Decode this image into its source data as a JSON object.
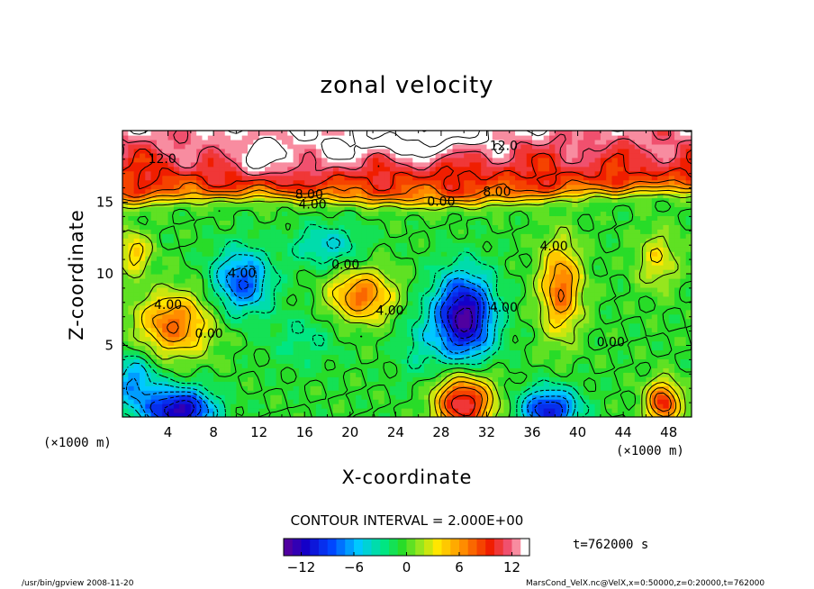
{
  "chart_data": {
    "type": "heatmap",
    "title": "zonal velocity",
    "xlabel": "X-coordinate",
    "ylabel": "Z-coordinate",
    "x_unit_left": "(×1000 m)",
    "x_unit_right": "(×1000 m)",
    "xlim": [
      0,
      50
    ],
    "ylim": [
      0,
      20
    ],
    "x_ticks": [
      4,
      8,
      12,
      16,
      20,
      24,
      28,
      32,
      36,
      40,
      44,
      48
    ],
    "x_tick_labels": [
      "4",
      "8",
      "12",
      "16",
      "20",
      "24",
      "28",
      "32",
      "36",
      "40",
      "44",
      "48"
    ],
    "y_ticks": [
      5,
      10,
      15
    ],
    "y_tick_labels": [
      "5",
      "10",
      "15"
    ],
    "contour_interval_text": "CONTOUR INTERVAL = 2.000E+00",
    "contour_labels": [
      {
        "text": "12.0",
        "x": 3.5,
        "y": 18.0
      },
      {
        "text": "12.0",
        "x": 33.5,
        "y": 18.9
      },
      {
        "text": "8.00",
        "x": 16.4,
        "y": 15.5
      },
      {
        "text": "8.00",
        "x": 32.9,
        "y": 15.7
      },
      {
        "text": "4.00",
        "x": 16.7,
        "y": 14.8
      },
      {
        "text": "0.00",
        "x": 28.0,
        "y": 15.0
      },
      {
        "text": "4.00",
        "x": 37.9,
        "y": 11.9
      },
      {
        "text": "0.00",
        "x": 19.6,
        "y": 10.6
      },
      {
        "text": "4.00",
        "x": 10.5,
        "y": 10.0
      },
      {
        "text": "4.00",
        "x": 4.0,
        "y": 7.8
      },
      {
        "text": "0.00",
        "x": 7.6,
        "y": 5.8
      },
      {
        "text": "4.00",
        "x": 23.5,
        "y": 7.4
      },
      {
        "text": "4.00",
        "x": 33.5,
        "y": 7.6
      },
      {
        "text": "0.00",
        "x": 42.9,
        "y": 5.2
      }
    ],
    "colorbar": {
      "range": [
        -14,
        14
      ],
      "ticks": [
        -12,
        -6,
        0,
        6,
        12
      ],
      "tick_labels": [
        "−12",
        "−6",
        "0",
        "6",
        "12"
      ]
    },
    "centers": [
      {
        "x": 4.5,
        "y": 6.5,
        "value": 8,
        "sx": 3.2,
        "sy": 2.2
      },
      {
        "x": 10.5,
        "y": 9.5,
        "value": -8,
        "sx": 2.5,
        "sy": 2.2
      },
      {
        "x": 21.0,
        "y": 8.5,
        "value": 8,
        "sx": 2.8,
        "sy": 1.8
      },
      {
        "x": 30.0,
        "y": 7.0,
        "value": -13,
        "sx": 2.6,
        "sy": 3.0
      },
      {
        "x": 38.5,
        "y": 9.0,
        "value": 8,
        "sx": 1.8,
        "sy": 3.2
      },
      {
        "x": 47.0,
        "y": 11.0,
        "value": 4,
        "sx": 1.8,
        "sy": 2.0
      },
      {
        "x": 5.0,
        "y": 0.5,
        "value": -12,
        "sx": 3.0,
        "sy": 1.5
      },
      {
        "x": 30.0,
        "y": 1.0,
        "value": 12,
        "sx": 2.5,
        "sy": 2.0
      },
      {
        "x": 37.5,
        "y": 0.5,
        "value": -10,
        "sx": 2.5,
        "sy": 1.5
      },
      {
        "x": 47.5,
        "y": 1.0,
        "value": 10,
        "sx": 1.5,
        "sy": 1.5
      },
      {
        "x": 1.0,
        "y": 2.5,
        "value": -6,
        "sx": 2.0,
        "sy": 2.0
      },
      {
        "x": 16.0,
        "y": 5.5,
        "value": -2,
        "sx": 3.0,
        "sy": 2.0
      },
      {
        "x": 26.0,
        "y": 5.0,
        "value": -2,
        "sx": 2.0,
        "sy": 3.0
      },
      {
        "x": 18.0,
        "y": 12.0,
        "value": -4,
        "sx": 3.0,
        "sy": 1.5
      },
      {
        "x": 1.0,
        "y": 11.5,
        "value": 5,
        "sx": 1.5,
        "sy": 1.5
      }
    ],
    "upper_layer": {
      "base": 9,
      "top": 13,
      "peaks": [
        {
          "x": 13,
          "y": 18,
          "value": 16
        },
        {
          "x": 28,
          "y": 20,
          "value": 17
        },
        {
          "x": 22,
          "y": 19,
          "value": 15
        }
      ]
    }
  },
  "colorbar_label": "t=762000 s",
  "footer": {
    "left": "/usr/bin/gpview  2008-11-20",
    "right": "MarsCond_VelX.nc@VelX,x=0:50000,z=0:20000,t=762000"
  }
}
